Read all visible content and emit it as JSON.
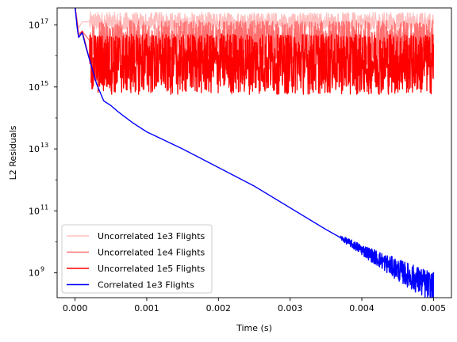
{
  "chart_data": {
    "type": "line",
    "title": "",
    "xlabel": "Time (s)",
    "ylabel": "L2 Residuals",
    "xlim": [
      -0.00025,
      0.00525
    ],
    "ylim_log10": [
      8.2,
      17.55
    ],
    "y_scale": "log",
    "grid": false,
    "legend_position": "lower-left",
    "x_ticks": [
      {
        "value": 0.0,
        "label": "0.000"
      },
      {
        "value": 0.001,
        "label": "0.001"
      },
      {
        "value": 0.002,
        "label": "0.002"
      },
      {
        "value": 0.003,
        "label": "0.003"
      },
      {
        "value": 0.004,
        "label": "0.004"
      },
      {
        "value": 0.005,
        "label": "0.005"
      }
    ],
    "y_ticks": [
      {
        "exp": 9,
        "base": "10",
        "power": "9"
      },
      {
        "exp": 11,
        "base": "10",
        "power": "11"
      },
      {
        "exp": 13,
        "base": "10",
        "power": "13"
      },
      {
        "exp": 15,
        "base": "10",
        "power": "15"
      },
      {
        "exp": 17,
        "base": "10",
        "power": "17"
      }
    ],
    "series": [
      {
        "name": "Uncorrelated 1e3 Flights",
        "color": "#ffbfbf",
        "x": [
          0.0,
          5e-05,
          0.0001,
          0.0002,
          0.0005,
          0.001,
          0.002,
          0.003,
          0.004,
          0.005
        ],
        "log10_y": [
          17.6,
          16.9,
          17.1,
          17.1,
          17.05,
          17.05,
          17.05,
          17.05,
          17.05,
          17.05
        ],
        "noise_log10_band": [
          16.85,
          17.55
        ]
      },
      {
        "name": "Uncorrelated 1e4 Flights",
        "color": "#ff7070",
        "x": [
          0.0,
          5e-05,
          0.0001,
          0.0002,
          0.0005,
          0.001,
          0.002,
          0.003,
          0.004,
          0.005
        ],
        "log10_y": [
          17.6,
          16.7,
          16.8,
          16.5,
          16.5,
          16.5,
          16.5,
          16.5,
          16.5,
          16.5
        ],
        "noise_log10_band": [
          15.6,
          17.2
        ]
      },
      {
        "name": "Uncorrelated 1e5 Flights",
        "color": "#ff0000",
        "x": [
          0.0,
          5e-05,
          0.0001,
          0.0002,
          0.0005,
          0.001,
          0.002,
          0.003,
          0.004,
          0.005
        ],
        "log10_y": [
          17.6,
          16.6,
          16.8,
          15.9,
          15.9,
          15.9,
          15.9,
          15.9,
          15.9,
          15.9
        ],
        "noise_log10_band": [
          14.6,
          16.7
        ]
      },
      {
        "name": "Correlated 1e3 Flights",
        "color": "#0000ff",
        "x": [
          0.0,
          3e-05,
          5e-05,
          0.0001,
          0.00015,
          0.0002,
          0.0003,
          0.0004,
          0.0005,
          0.0006,
          0.0008,
          0.001,
          0.0015,
          0.002,
          0.0025,
          0.003,
          0.0035,
          0.004,
          0.0045,
          0.005
        ],
        "log10_y": [
          17.6,
          16.9,
          16.6,
          16.75,
          16.3,
          15.9,
          15.1,
          14.55,
          14.4,
          14.2,
          13.85,
          13.55,
          13.0,
          12.4,
          11.8,
          11.1,
          10.4,
          9.75,
          9.1,
          8.5
        ],
        "noise_log10_band": [
          8.2,
          9.4
        ]
      }
    ]
  }
}
